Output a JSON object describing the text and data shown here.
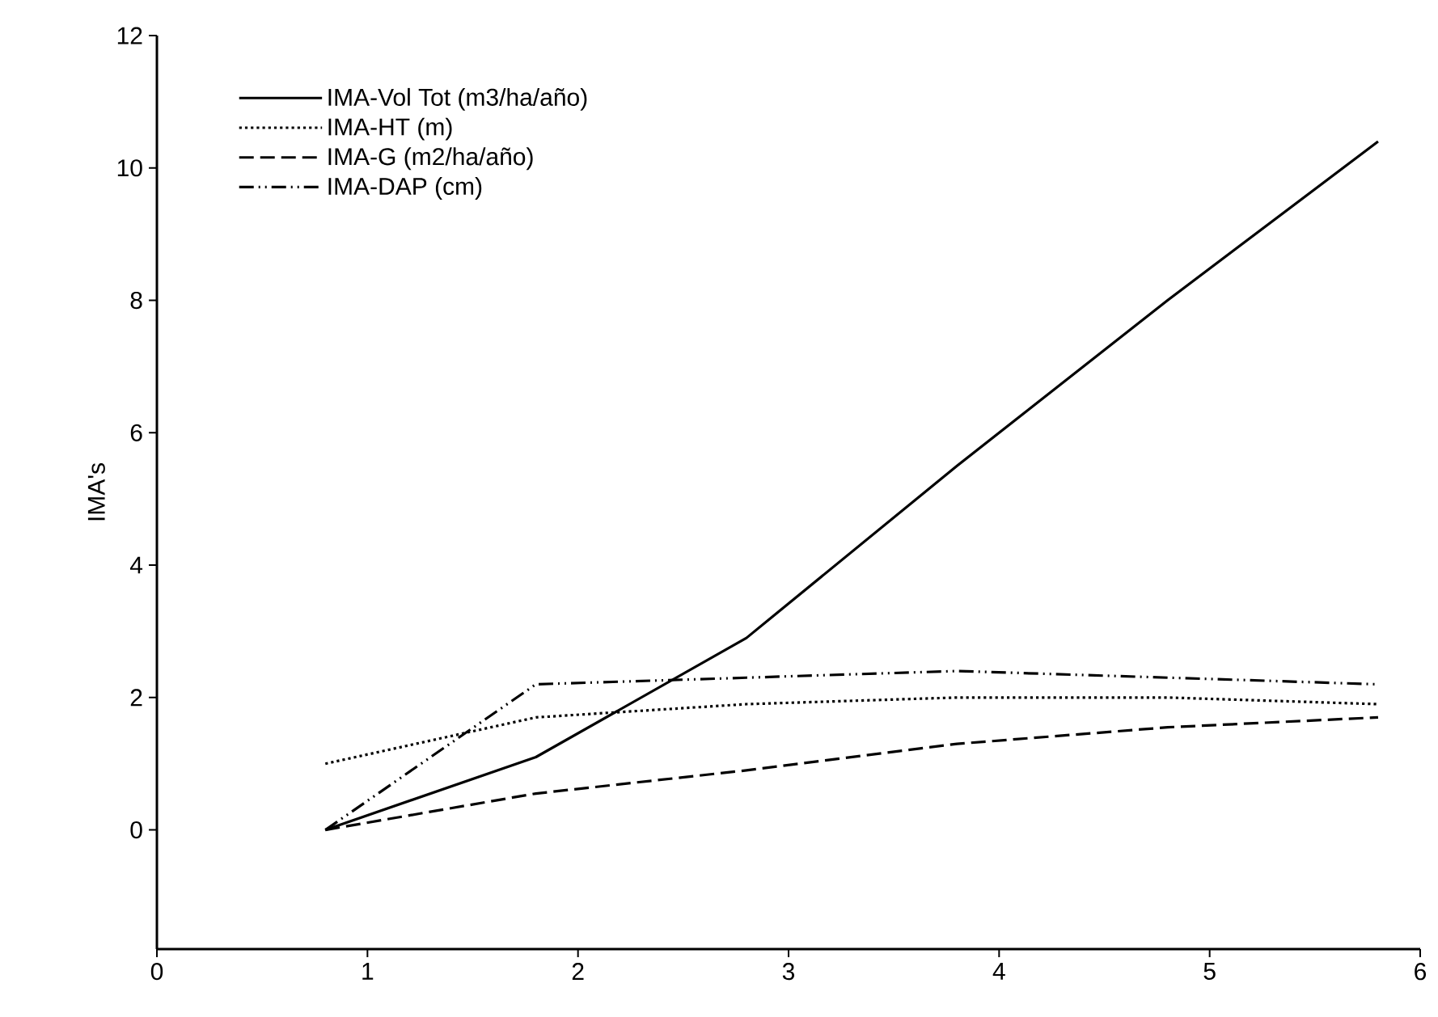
{
  "chart_data": {
    "type": "line",
    "ylabel": "IMA's",
    "x": [
      0.8,
      1.8,
      2.8,
      3.8,
      4.8,
      5.8
    ],
    "xlim": [
      0,
      6
    ],
    "xticks": [
      0,
      1,
      2,
      3,
      4,
      5,
      6
    ],
    "ylim": [
      -1.8,
      12
    ],
    "yticks": [
      0,
      2,
      4,
      6,
      8,
      10,
      12
    ],
    "legend": "top left",
    "marker": "none",
    "series": [
      {
        "name": "IMA-Vol Tot (m3/ha/año)",
        "color": "#000000",
        "line_style": "solid",
        "values": [
          0,
          1.1,
          2.9,
          5.5,
          8.0,
          10.4
        ]
      },
      {
        "name": "IMA-HT (m)",
        "color": "#000000",
        "line_style": "dotted",
        "values": [
          1.0,
          1.7,
          1.9,
          2.0,
          2.0,
          1.9
        ]
      },
      {
        "name": "IMA-G (m2/ha/año)",
        "color": "#000000",
        "line_style": "dashed",
        "values": [
          0,
          0.55,
          0.9,
          1.3,
          1.55,
          1.7
        ]
      },
      {
        "name": "IMA-DAP (cm)",
        "color": "#000000",
        "line_style": "dashdotdot",
        "values": [
          0,
          2.2,
          2.3,
          2.4,
          2.3,
          2.2
        ]
      }
    ]
  }
}
